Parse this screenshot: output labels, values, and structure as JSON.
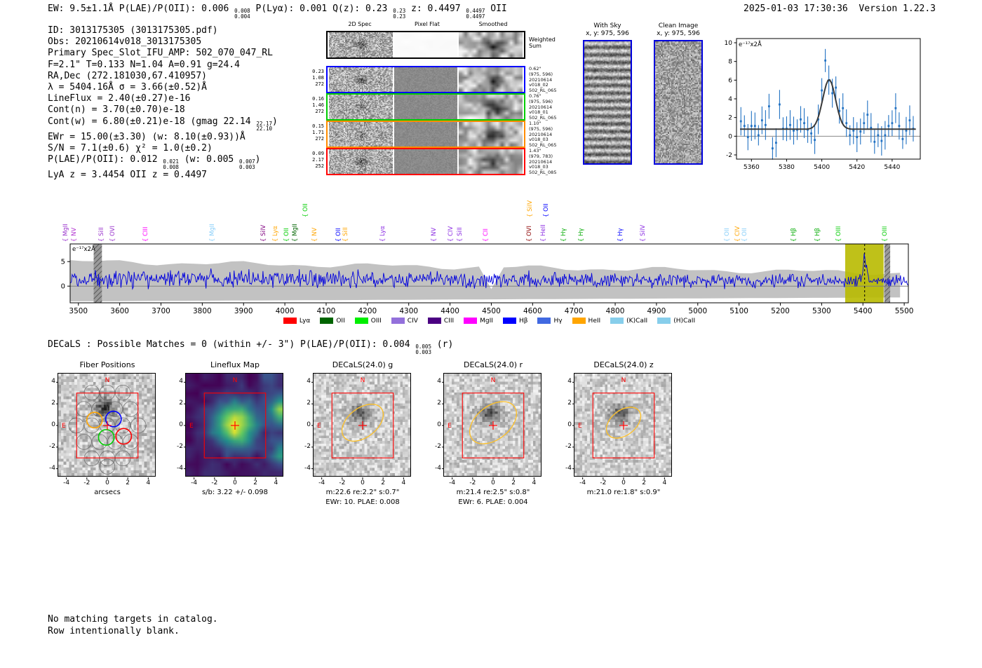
{
  "header": {
    "left": [
      {
        "t": "EW: 9.5±1.1Å  P(LAE)/P(OII): 0.006 "
      },
      {
        "hi": "0.008",
        "lo": "0.004"
      },
      {
        "t": "  P(Lyα): 0.001  Q(z): 0.23 "
      },
      {
        "hi": "0.23",
        "lo": "0.23"
      },
      {
        "t": "  z: 0.4497 "
      },
      {
        "hi": "0.4497",
        "lo": "0.4497"
      },
      {
        "t": " OII"
      }
    ],
    "timestamp": "2025-01-03 17:30:36",
    "version": "Version 1.22.3"
  },
  "info_lines": [
    [
      {
        "t": "ID: 3013175305 (3013175305.pdf)"
      }
    ],
    [
      {
        "t": "Obs: 20210614v018_3013175305"
      }
    ],
    [
      {
        "t": "Primary Spec_Slot_IFU_AMP: 502_070_047_RL"
      }
    ],
    [
      {
        "t": "F=2.1\"  T=0.133  N=1.04  A=0.91  g=24.4"
      }
    ],
    [
      {
        "t": "RA,Dec (272.181030,67.410957)"
      }
    ],
    [
      {
        "t": "λ = 5404.16Å  σ = 3.66(±0.52)Å"
      }
    ],
    [
      {
        "t": "LineFlux = 2.40(±0.27)e-16"
      }
    ],
    [
      {
        "t": "Cont(n) = 3.70(±0.70)e-18"
      }
    ],
    [
      {
        "t": "Cont(w) = 6.80(±0.21)e-18 (gmag 22.14 "
      },
      {
        "hi": "22.17",
        "lo": "22.10"
      },
      {
        "t": ")"
      }
    ],
    [
      {
        "t": "EWr = 15.00(±3.30) (w: 8.10(±0.93))Å"
      }
    ],
    [
      {
        "t": "S/N = 7.1(±0.6)  χ² = 1.0(±0.2)"
      }
    ],
    [
      {
        "t": "P(LAE)/P(OII): 0.012 "
      },
      {
        "hi": "0.021",
        "lo": "0.008"
      },
      {
        "t": " (w: 0.005 "
      },
      {
        "hi": "0.007",
        "lo": "0.003"
      },
      {
        "t": ")"
      }
    ],
    [
      {
        "t": "LyA z = 3.4454  OII z = 0.4497"
      }
    ]
  ],
  "spec2d": {
    "col_headers": [
      "2D Spec",
      "Pixel Flat",
      "Smoothed"
    ],
    "rows": [
      {
        "border": "#000000",
        "left": [],
        "right": [
          "Weighted",
          "Sum"
        ],
        "flat": "white"
      },
      {
        "border": "#0000ff",
        "left": [
          "0.23",
          "1.08",
          "272"
        ],
        "right": [
          "0.62\"",
          "(975, 596)",
          "20210614",
          "v018_02",
          "502_RL_065"
        ]
      },
      {
        "border": "#00cc00",
        "left": [
          "0.16",
          "1.46",
          "272"
        ],
        "right": [
          "0.76\"",
          "(975, 596)",
          "20210614",
          "v018_01",
          "502_RL_065"
        ]
      },
      {
        "border": "#ff8c00",
        "left": [
          "0.15",
          "1.71",
          "272"
        ],
        "right": [
          "1.10\"",
          "(975, 596)",
          "20210614",
          "v018_03",
          "502_RL_065"
        ]
      },
      {
        "border": "#ff0000",
        "left": [
          "0.09",
          "2.17",
          "252"
        ],
        "right": [
          "1.43\"",
          "(979, 783)",
          "20210614",
          "v018_03",
          "502_RL_085"
        ]
      }
    ]
  },
  "sky_panels": [
    {
      "title": "With Sky",
      "coords": "x, y: 975, 596"
    },
    {
      "title": "Clean Image",
      "coords": "x, y: 975, 596"
    }
  ],
  "chart_data": [
    {
      "type": "scatter",
      "title": "Emission line gaussian fit",
      "annotation": "e⁻¹⁷x2Å",
      "xlim": [
        5351.5,
        5456
      ],
      "ylim": [
        -2.45,
        10.45
      ],
      "xticks": [
        5360,
        5380,
        5400,
        5420,
        5440
      ],
      "yticks": [
        -2,
        0,
        2,
        4,
        6,
        8,
        10
      ],
      "points": {
        "x_start": 5354,
        "x_step": 2,
        "y": [
          1.6,
          1.1,
          -0.1,
          1.1,
          1.1,
          0.1,
          1.7,
          1.2,
          3.2,
          -1.3,
          -0.7,
          3.4,
          0.8,
          0.8,
          1.2,
          0.6,
          0.7,
          1.8,
          1.4,
          0.7,
          0.3,
          -0.4,
          1.8,
          4.9,
          8.1,
          6.0,
          4.6,
          5.2,
          2.7,
          3.0,
          1.4,
          0.1,
          0.6,
          -0.1,
          0.5,
          1.4,
          2.3,
          0.9,
          -0.6,
          0.1,
          -0.5,
          0.1,
          1.1,
          1.4,
          3.0,
          1.1,
          -0.3,
          0.6,
          1.7,
          0.8
        ],
        "yerr_typical": 1.3
      },
      "fit": {
        "center": 5404.16,
        "sigma": 3.66,
        "amplitude": 5.3,
        "baseline": 0.75
      },
      "marker_color": "#2272c3",
      "fit_color": "#3a3a3a"
    },
    {
      "type": "line",
      "title": "Full HETDEX spectrum",
      "annotation": "e⁻¹⁷x2Å",
      "xlim": [
        3480,
        5510
      ],
      "ylim": [
        -3.4,
        8.6
      ],
      "xticks": [
        3500,
        3600,
        3700,
        3800,
        3900,
        4000,
        4100,
        4200,
        4300,
        4400,
        4500,
        4600,
        4700,
        4800,
        4900,
        5000,
        5100,
        5200,
        5300,
        5400,
        5500
      ],
      "yticks": [
        0,
        5
      ],
      "line_color": "#0000dd",
      "render_params": {
        "noise_seed": 12,
        "baseline_start": 1.65,
        "baseline_end": 1.05,
        "noise_sigma_start": 1.55,
        "noise_sigma_end": 0.95,
        "emission": {
          "center": 5404.16,
          "sigma": 3.66,
          "amplitude": 5.0
        },
        "envelope": {
          "top_start": 5.0,
          "top_end": 2.7,
          "bottom_start": -3.1,
          "bottom_end": -2.3,
          "notch": [
            4490,
            4518
          ]
        }
      },
      "bands": [
        {
          "x0": 3537,
          "x1": 3557,
          "type": "hatched"
        },
        {
          "x0": 5357,
          "x1": 5450,
          "type": "highlight",
          "color": "#b8ba00"
        },
        {
          "x0": 5452,
          "x1": 5466,
          "type": "hatched"
        }
      ],
      "dashed_line_x": 5404.16,
      "line_labels": [
        {
          "wl": 3481,
          "label": "MgII",
          "color": "#9932cc"
        },
        {
          "wl": 3502,
          "label": "NV",
          "color": "#b030d0"
        },
        {
          "wl": 3568,
          "label": "SiII",
          "color": "#9932cc"
        },
        {
          "wl": 3596,
          "label": "OVI",
          "color": "#9932cc"
        },
        {
          "wl": 3676,
          "label": "CIII",
          "color": "#ff00ff"
        },
        {
          "wl": 3837,
          "label": "MgII",
          "color": "#87cefa"
        },
        {
          "wl": 3961,
          "label": "SiIV",
          "color": "#800080"
        },
        {
          "wl": 3990,
          "label": "Lyα",
          "color": "#ffa500"
        },
        {
          "wl": 4016,
          "label": "OII",
          "color": "#00cc00"
        },
        {
          "wl": 4038,
          "label": "MgII",
          "color": "#006400"
        },
        {
          "wl": 4063,
          "label": "OII",
          "color": "#00cc00",
          "raised": true
        },
        {
          "wl": 4084,
          "label": "NV",
          "color": "#ffa500"
        },
        {
          "wl": 4143,
          "label": "OII",
          "color": "#0000ff"
        },
        {
          "wl": 4160,
          "label": "SiII",
          "color": "#ffa500"
        },
        {
          "wl": 4250,
          "label": "Lyα",
          "color": "#8a2be2"
        },
        {
          "wl": 4373,
          "label": "NV",
          "color": "#8a2be2"
        },
        {
          "wl": 4415,
          "label": "CIV",
          "color": "#8a2be2"
        },
        {
          "wl": 4437,
          "label": "SiII",
          "color": "#8a2be2"
        },
        {
          "wl": 4500,
          "label": "CII",
          "color": "#ff00ff"
        },
        {
          "wl": 4604,
          "label": "OVI",
          "color": "#8b0000"
        },
        {
          "wl": 4607,
          "label": "SiIV",
          "color": "#ffa500",
          "raised": true
        },
        {
          "wl": 4639,
          "label": "HeII",
          "color": "#8a2be2"
        },
        {
          "wl": 4645,
          "label": "OII",
          "color": "#0000ff",
          "raised": true
        },
        {
          "wl": 4687,
          "label": "Hγ",
          "color": "#00aa00"
        },
        {
          "wl": 4730,
          "label": "Hγ",
          "color": "#00aa00"
        },
        {
          "wl": 4826,
          "label": "Hγ",
          "color": "#0000ff"
        },
        {
          "wl": 4879,
          "label": "SiIV",
          "color": "#8a2be2"
        },
        {
          "wl": 5083,
          "label": "OII",
          "color": "#87cefa"
        },
        {
          "wl": 5109,
          "label": "CIV",
          "color": "#ffa500"
        },
        {
          "wl": 5126,
          "label": "OII",
          "color": "#87cefa"
        },
        {
          "wl": 5245,
          "label": "Hβ",
          "color": "#00aa00"
        },
        {
          "wl": 5302,
          "label": "Hβ",
          "color": "#00aa00"
        },
        {
          "wl": 5353,
          "label": "OIII",
          "color": "#00cc00"
        },
        {
          "wl": 5466,
          "label": "OIII",
          "color": "#00cc00"
        }
      ],
      "legend": [
        {
          "label": "Lyα",
          "color": "#ff0000"
        },
        {
          "label": "OII",
          "color": "#006400"
        },
        {
          "label": "OIII",
          "color": "#00ee00"
        },
        {
          "label": "CIV",
          "color": "#9370db"
        },
        {
          "label": "CIII",
          "color": "#4b0082"
        },
        {
          "label": "MgII",
          "color": "#ff00ff"
        },
        {
          "label": "Hβ",
          "color": "#0000ff"
        },
        {
          "label": "Hγ",
          "color": "#4169e1"
        },
        {
          "label": "HeII",
          "color": "#ffa500"
        },
        {
          "label": "(K)CaII",
          "color": "#87ceeb"
        },
        {
          "label": "(H)CaII",
          "color": "#87ceeb"
        }
      ]
    }
  ],
  "decals_header": [
    {
      "t": "DECaLS : Possible Matches = 0 (within +/- 3\")  P(LAE)/P(OII): 0.004 "
    },
    {
      "hi": "0.005",
      "lo": "0.003"
    },
    {
      "t": " (r)"
    }
  ],
  "cutouts": {
    "ticks": [
      -4,
      -2,
      0,
      2,
      4
    ],
    "panels": [
      {
        "key": "fiber",
        "title": "Fiber Positions",
        "xlabel": "arcsecs",
        "subs": [
          "arcsecs"
        ]
      },
      {
        "key": "lineflux",
        "title": "Lineflux Map",
        "subs": [
          "s/b: 3.22 +/- 0.098"
        ]
      },
      {
        "key": "g",
        "title": "DECaLS(24.0) g",
        "subs": [
          "m:22.6 re:2.2\" s:0.7\"",
          "EWr: 10. PLAE: 0.008"
        ]
      },
      {
        "key": "r",
        "title": "DECaLS(24.0) r",
        "subs": [
          "m:21.4 re:2.5\" s:0.8\"",
          "EWr: 6. PLAE: 0.004"
        ]
      },
      {
        "key": "z",
        "title": "DECaLS(24.0) z",
        "subs": [
          "m:21.0 re:1.8\" s:0.9\""
        ]
      }
    ],
    "compass": {
      "north": "N",
      "east": "E"
    }
  },
  "footer": [
    "No matching targets in catalog.",
    "Row intentionally blank."
  ]
}
